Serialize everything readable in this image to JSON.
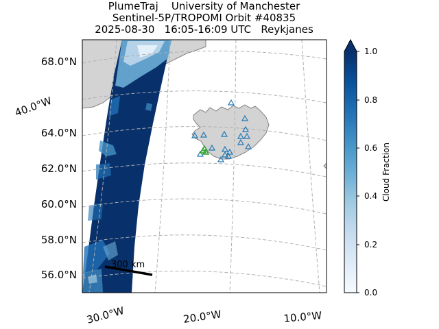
{
  "title": {
    "line1": "PlumeTraj    University of Manchester",
    "line2": "Sentinel-5P/TROPOMI Orbit #40835",
    "line3": "2025-08-30   16:05-16:09 UTC   Reykjanes"
  },
  "map": {
    "lat_labels": [
      "68.0°N",
      "64.0°N",
      "62.0°N",
      "60.0°N",
      "58.0°N",
      "56.0°N"
    ],
    "lat_diag_label": "40.0°W",
    "lon_labels": [
      "30.0°W",
      "20.0°W",
      "10.0°W"
    ],
    "scale_bar_label": "300 km",
    "gridlines": true,
    "land_color": "#d3d3d3",
    "coast_color": "#808080",
    "volcano_marker_color": "#1f77b4",
    "active_marker_color": "#2ca02c"
  },
  "colorbar": {
    "label": "Cloud Fraction",
    "ticks": [
      "0.0",
      "0.2",
      "0.4",
      "0.6",
      "0.8",
      "1.0"
    ],
    "colormap": "Blues",
    "extend": "max",
    "range": [
      0,
      1
    ]
  }
}
